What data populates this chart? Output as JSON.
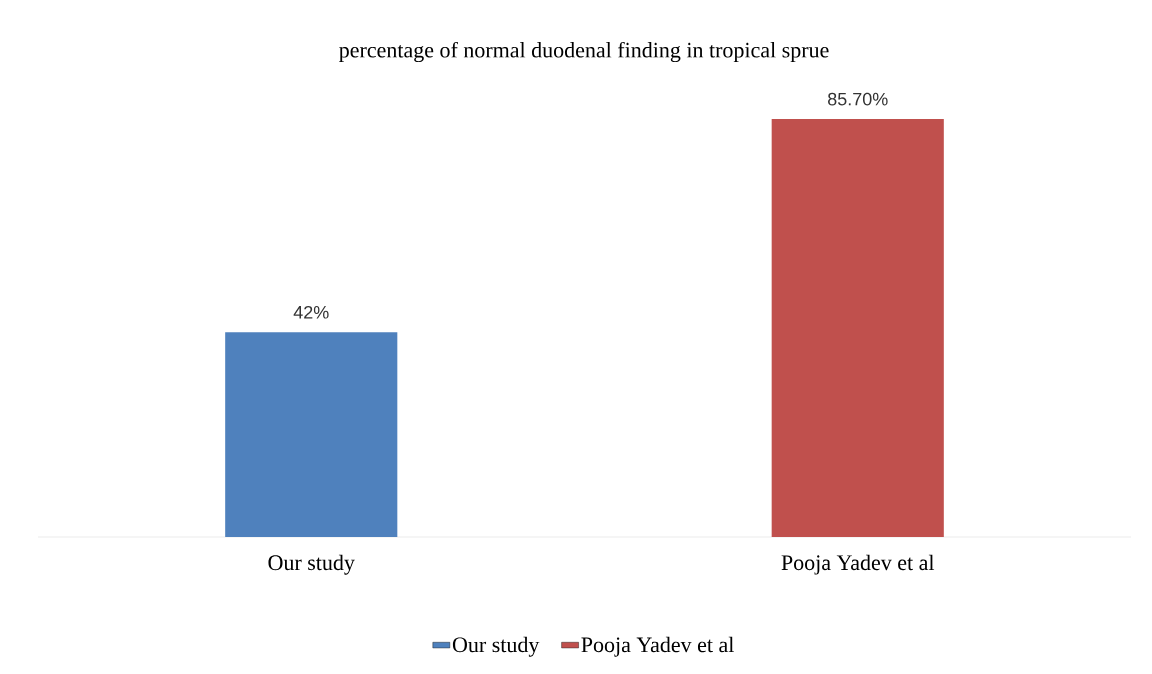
{
  "chart_data": {
    "type": "bar",
    "title": "percentage of normal duodenal finding in tropical sprue",
    "categories": [
      "Our study",
      "Pooja Yadev et al"
    ],
    "series": [
      {
        "name": "Our study",
        "color": "#4f81bd",
        "values": [
          42,
          null
        ],
        "value_labels": [
          "42%",
          null
        ]
      },
      {
        "name": "Pooja Yadev et al",
        "color": "#c0504d",
        "values": [
          null,
          85.7
        ],
        "value_labels": [
          null,
          "85.70%"
        ]
      }
    ],
    "legend": "bottom"
  }
}
